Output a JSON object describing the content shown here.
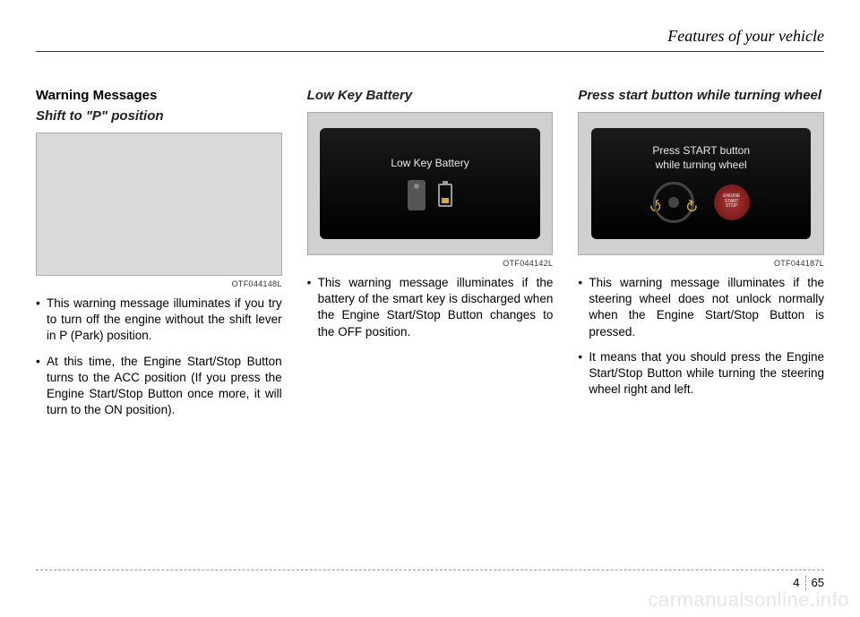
{
  "header": {
    "chapter_title": "Features of your vehicle"
  },
  "col1": {
    "title_bold": "Warning Messages",
    "title_italic": "Shift to \"P\" position",
    "image_code": "OTF044148L",
    "bullets": [
      "This warning message illuminates if you try to turn off the engine without the shift lever in P (Park) position.",
      "At this time, the Engine Start/Stop Button turns to the ACC position (If you press the Engine Start/Stop Button once more, it will turn to the ON position)."
    ]
  },
  "col2": {
    "title_italic": "Low Key Battery",
    "dash_text": "Low Key Battery",
    "image_code": "OTF044142L",
    "bullets": [
      "This warning message illuminates if the battery of the smart key is discharged when the Engine Start/Stop Button changes to the OFF position."
    ]
  },
  "col3": {
    "title_italic": "Press start button while turning wheel",
    "dash_text": "Press START button\nwhile turning wheel",
    "start_btn_text": "ENGINE\nSTART\nSTOP",
    "image_code": "OTF044187L",
    "bullets": [
      "This warning message illuminates if the steering wheel does not unlock normally when the Engine Start/Stop Button is pressed.",
      "It means that you should press the Engine Start/Stop Button while turning the steering wheel right and left."
    ]
  },
  "footer": {
    "chapter_num": "4",
    "page_num": "65"
  },
  "watermark": "carmanualsonline.info",
  "colors": {
    "text": "#000000",
    "background": "#ffffff",
    "image_placeholder": "#d9d9d9",
    "dash_bg_top": "#1a1a1a",
    "dash_bg_bottom": "#000000",
    "accent": "#d4a847"
  }
}
